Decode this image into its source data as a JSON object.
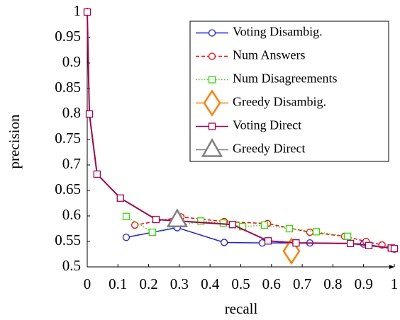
{
  "chart_data": {
    "type": "line",
    "xlabel": "recall",
    "ylabel": "precision",
    "xlim": [
      0,
      1
    ],
    "ylim": [
      0.5,
      1
    ],
    "xticks": [
      0,
      0.1,
      0.2,
      0.3,
      0.4,
      0.5,
      0.6,
      0.7,
      0.8,
      0.9,
      1
    ],
    "yticks": [
      0.5,
      0.55,
      0.6,
      0.65,
      0.7,
      0.75,
      0.8,
      0.85,
      0.9,
      0.95,
      1
    ],
    "legend": "upper right",
    "series": [
      {
        "name": "Voting Disambig.",
        "color": "#1a1aff",
        "dash": "solid",
        "marker": "circle",
        "x": [
          0.127,
          0.293,
          0.446,
          0.57,
          0.725,
          0.9,
          1.0
        ],
        "values": [
          0.558,
          0.577,
          0.548,
          0.547,
          0.547,
          0.545,
          0.535
        ]
      },
      {
        "name": "Num Answers",
        "color": "#ff0000",
        "dash": "dashed",
        "marker": "circle",
        "x": [
          0.155,
          0.305,
          0.446,
          0.587,
          0.725,
          0.838,
          0.908,
          0.96,
          1.0
        ],
        "values": [
          0.582,
          0.598,
          0.589,
          0.585,
          0.568,
          0.56,
          0.55,
          0.543,
          0.535
        ]
      },
      {
        "name": "Num Disagreements",
        "color": "#33dd00",
        "dash": "dotted",
        "marker": "square",
        "x": [
          0.127,
          0.212,
          0.37,
          0.443,
          0.506,
          0.577,
          0.658,
          0.746,
          0.848
        ],
        "values": [
          0.599,
          0.568,
          0.59,
          0.586,
          0.579,
          0.582,
          0.575,
          0.569,
          0.56
        ]
      },
      {
        "name": "Greedy Disambig.",
        "color": "#ff8000",
        "dash": "solid",
        "marker": "diamond",
        "x": [
          0.665
        ],
        "values": [
          0.531
        ]
      },
      {
        "name": "Voting Direct",
        "color": "#a5004c",
        "dash": "solid",
        "marker": "square",
        "x": [
          0,
          0.007,
          0.032,
          0.108,
          0.224,
          0.473,
          0.589,
          0.68,
          0.857,
          0.917,
          0.99,
          1.0
        ],
        "values": [
          1,
          0.8,
          0.682,
          0.635,
          0.593,
          0.583,
          0.551,
          0.547,
          0.546,
          0.542,
          0.537,
          0.536
        ]
      },
      {
        "name": "Greedy Direct",
        "color": "#808080",
        "dash": "solid",
        "marker": "triangle",
        "x": [
          0.293
        ],
        "values": [
          0.592
        ]
      }
    ]
  }
}
